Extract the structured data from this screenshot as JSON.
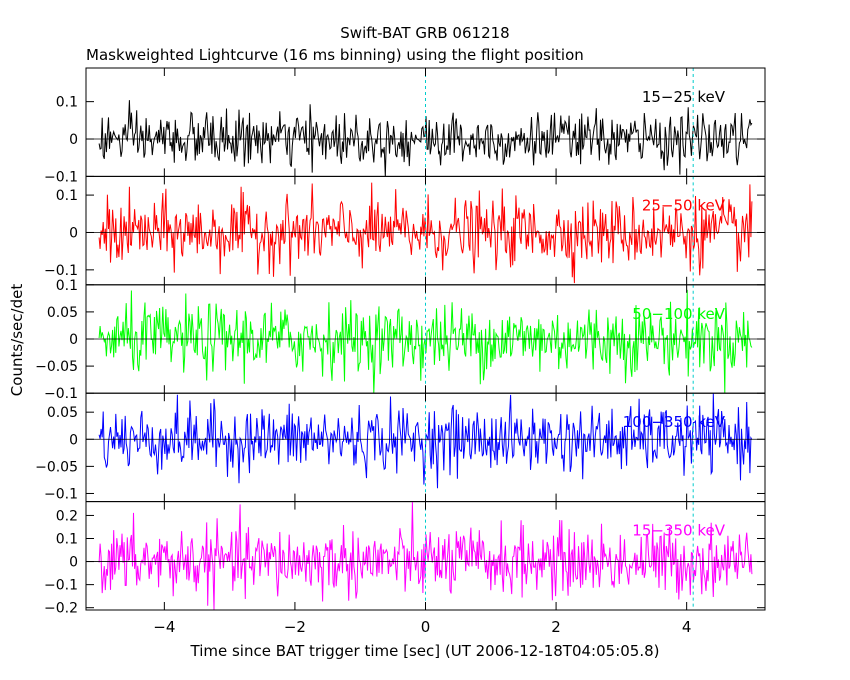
{
  "chart_data": {
    "type": "line",
    "title": "Swift-BAT GRB 061218",
    "subtitle": "Maskweighted Lightcurve (16 ms binning) using the flight position",
    "xlabel": "Time since BAT trigger time [sec] (UT 2006-12-18T04:05:05.8)",
    "ylabel": "Counts/sec/det",
    "xlim": [
      -5.2,
      5.2
    ],
    "data_x_range": [
      -5.0,
      5.0
    ],
    "bin_seconds": 0.016,
    "x_ticks": [
      -4,
      -2,
      0,
      2,
      4
    ],
    "x_tick_labels": [
      "−4",
      "−2",
      "0",
      "2",
      "4"
    ],
    "markers": [
      {
        "x": 0,
        "color": "#00cccc",
        "style": "dashed"
      },
      {
        "x": 4.1,
        "color": "#00cccc",
        "style": "dashed"
      }
    ],
    "panels": [
      {
        "band": "15−25 keV",
        "color": "#000000",
        "ylim": [
          -0.1,
          0.19
        ],
        "y_ticks": [
          -0.1,
          0,
          0.1
        ],
        "y_tick_labels": [
          "−0.1",
          "0",
          "0.1"
        ],
        "noise_sigma": 0.035,
        "baseline": 0
      },
      {
        "band": "25−50 keV",
        "color": "#ff0000",
        "ylim": [
          -0.14,
          0.15
        ],
        "y_ticks": [
          -0.1,
          0,
          0.1
        ],
        "y_tick_labels": [
          "−0.1",
          "0",
          "0.1"
        ],
        "noise_sigma": 0.045,
        "baseline": 0
      },
      {
        "band": "50−100 keV",
        "color": "#00ff00",
        "ylim": [
          -0.1,
          0.1
        ],
        "y_ticks": [
          -0.1,
          -0.05,
          0,
          0.05,
          0.1
        ],
        "y_tick_labels": [
          "−0.1",
          "−0.05",
          "0",
          "0.05",
          "0.1"
        ],
        "noise_sigma": 0.032,
        "baseline": 0
      },
      {
        "band": "100−350 keV",
        "color": "#0000ff",
        "ylim": [
          -0.115,
          0.085
        ],
        "y_ticks": [
          -0.1,
          -0.05,
          0,
          0.05
        ],
        "y_tick_labels": [
          "−0.1",
          "−0.05",
          "0",
          "0.05"
        ],
        "noise_sigma": 0.03,
        "baseline": 0
      },
      {
        "band": "15−350 keV",
        "color": "#ff00ff",
        "ylim": [
          -0.21,
          0.26
        ],
        "y_ticks": [
          -0.2,
          -0.1,
          0,
          0.1,
          0.2
        ],
        "y_tick_labels": [
          "−0.2",
          "−0.1",
          "0",
          "0.1",
          "0.2"
        ],
        "noise_sigma": 0.075,
        "baseline": 0
      }
    ]
  }
}
